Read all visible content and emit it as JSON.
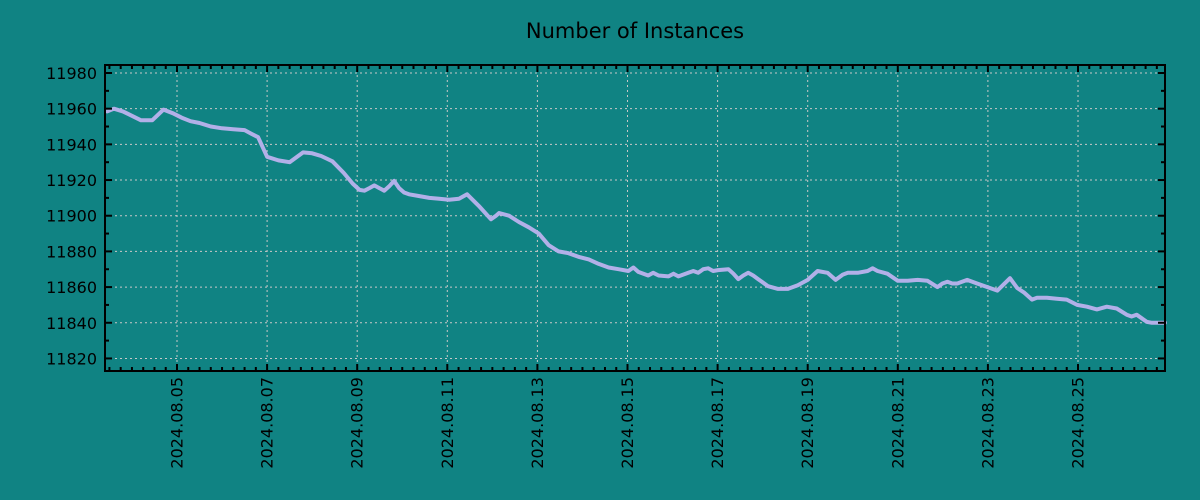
{
  "chart_data": {
    "type": "line",
    "title": "Number of Instances",
    "xlabel": "",
    "ylabel": "",
    "x_unit": "date (2024.08.DD, day-of-month as number)",
    "ylim": [
      11813,
      11985
    ],
    "xlim_days": [
      3.4,
      26.93
    ],
    "grid": "dashed, both axes",
    "legend": "none",
    "y_ticks": [
      11980,
      11960,
      11940,
      11920,
      11900,
      11880,
      11860,
      11840,
      11820
    ],
    "x_ticks": [
      {
        "day": 5,
        "label": "2024.08.05"
      },
      {
        "day": 7,
        "label": "2024.08.07"
      },
      {
        "day": 9,
        "label": "2024.08.09"
      },
      {
        "day": 11,
        "label": "2024.08.11"
      },
      {
        "day": 13,
        "label": "2024.08.13"
      },
      {
        "day": 15,
        "label": "2024.08.15"
      },
      {
        "day": 17,
        "label": "2024.08.17"
      },
      {
        "day": 19,
        "label": "2024.08.19"
      },
      {
        "day": 21,
        "label": "2024.08.21"
      },
      {
        "day": 23,
        "label": "2024.08.23"
      },
      {
        "day": 25,
        "label": "2024.08.25"
      }
    ],
    "series": [
      {
        "name": "instances",
        "points": [
          [
            3.45,
            11958.5
          ],
          [
            3.6,
            11960
          ],
          [
            3.8,
            11958.5
          ],
          [
            4.0,
            11956
          ],
          [
            4.2,
            11953.5
          ],
          [
            4.45,
            11953.5
          ],
          [
            4.7,
            11959.5
          ],
          [
            4.9,
            11957.5
          ],
          [
            5.1,
            11955
          ],
          [
            5.3,
            11953
          ],
          [
            5.5,
            11952
          ],
          [
            5.75,
            11950
          ],
          [
            6.0,
            11949
          ],
          [
            6.25,
            11948.5
          ],
          [
            6.5,
            11948
          ],
          [
            6.65,
            11946
          ],
          [
            6.8,
            11944
          ],
          [
            7.0,
            11933
          ],
          [
            7.25,
            11931
          ],
          [
            7.5,
            11930
          ],
          [
            7.8,
            11935.5
          ],
          [
            8.0,
            11935
          ],
          [
            8.2,
            11933.5
          ],
          [
            8.45,
            11930.5
          ],
          [
            8.7,
            11924
          ],
          [
            8.9,
            11918
          ],
          [
            9.05,
            11914.5
          ],
          [
            9.16,
            11914
          ],
          [
            9.27,
            11915.5
          ],
          [
            9.38,
            11917
          ],
          [
            9.49,
            11915.5
          ],
          [
            9.6,
            11914
          ],
          [
            9.71,
            11916.5
          ],
          [
            9.82,
            11919.5
          ],
          [
            9.93,
            11915.5
          ],
          [
            10.04,
            11913
          ],
          [
            10.15,
            11912
          ],
          [
            10.38,
            11911
          ],
          [
            10.6,
            11910
          ],
          [
            10.82,
            11909.5
          ],
          [
            11.04,
            11909
          ],
          [
            11.26,
            11909.5
          ],
          [
            11.44,
            11912
          ],
          [
            11.7,
            11905.5
          ],
          [
            11.97,
            11898
          ],
          [
            12.08,
            11900
          ],
          [
            12.15,
            11901.5
          ],
          [
            12.37,
            11900
          ],
          [
            12.59,
            11896.5
          ],
          [
            12.81,
            11893.5
          ],
          [
            13.03,
            11890
          ],
          [
            13.25,
            11883.5
          ],
          [
            13.47,
            11880
          ],
          [
            13.69,
            11879
          ],
          [
            13.91,
            11877
          ],
          [
            14.14,
            11875.5
          ],
          [
            14.36,
            11873
          ],
          [
            14.58,
            11871
          ],
          [
            14.8,
            11870
          ],
          [
            15.02,
            11869
          ],
          [
            15.13,
            11871
          ],
          [
            15.24,
            11868.5
          ],
          [
            15.46,
            11866.5
          ],
          [
            15.57,
            11868
          ],
          [
            15.69,
            11866.5
          ],
          [
            15.91,
            11866
          ],
          [
            16.02,
            11867.5
          ],
          [
            16.13,
            11866
          ],
          [
            16.35,
            11868
          ],
          [
            16.46,
            11869
          ],
          [
            16.57,
            11868
          ],
          [
            16.68,
            11870
          ],
          [
            16.79,
            11870.5
          ],
          [
            16.9,
            11869
          ],
          [
            17.01,
            11869.5
          ],
          [
            17.24,
            11870
          ],
          [
            17.35,
            11867.5
          ],
          [
            17.46,
            11864.5
          ],
          [
            17.57,
            11866.5
          ],
          [
            17.68,
            11868
          ],
          [
            17.79,
            11866.5
          ],
          [
            17.9,
            11864.5
          ],
          [
            18.12,
            11860.5
          ],
          [
            18.34,
            11859
          ],
          [
            18.56,
            11859
          ],
          [
            18.78,
            11861
          ],
          [
            19.0,
            11864
          ],
          [
            19.22,
            11869
          ],
          [
            19.44,
            11868
          ],
          [
            19.62,
            11864
          ],
          [
            19.78,
            11867
          ],
          [
            19.89,
            11868
          ],
          [
            20.11,
            11868
          ],
          [
            20.33,
            11869
          ],
          [
            20.44,
            11870.5
          ],
          [
            20.55,
            11869
          ],
          [
            20.77,
            11867.5
          ],
          [
            21.0,
            11863.5
          ],
          [
            21.22,
            11863.5
          ],
          [
            21.44,
            11864
          ],
          [
            21.66,
            11863.5
          ],
          [
            21.88,
            11860
          ],
          [
            21.99,
            11862
          ],
          [
            22.1,
            11863
          ],
          [
            22.21,
            11862
          ],
          [
            22.32,
            11862
          ],
          [
            22.54,
            11864
          ],
          [
            22.76,
            11862
          ],
          [
            22.99,
            11860
          ],
          [
            23.21,
            11858
          ],
          [
            23.49,
            11865
          ],
          [
            23.65,
            11859.5
          ],
          [
            23.8,
            11857
          ],
          [
            23.98,
            11853
          ],
          [
            24.09,
            11854
          ],
          [
            24.31,
            11854
          ],
          [
            24.53,
            11853.5
          ],
          [
            24.75,
            11853
          ],
          [
            24.98,
            11850
          ],
          [
            25.2,
            11849
          ],
          [
            25.42,
            11847.5
          ],
          [
            25.64,
            11849
          ],
          [
            25.86,
            11848
          ],
          [
            26.08,
            11844.5
          ],
          [
            26.19,
            11843.5
          ],
          [
            26.3,
            11844.5
          ],
          [
            26.53,
            11840.5
          ],
          [
            26.64,
            11840
          ],
          [
            26.93,
            11840
          ]
        ]
      }
    ],
    "colors": {
      "background": "#108383",
      "line": "#b2b0e8",
      "grid": "#c8c8c8",
      "axis": "#000000",
      "text": "#000000"
    }
  }
}
